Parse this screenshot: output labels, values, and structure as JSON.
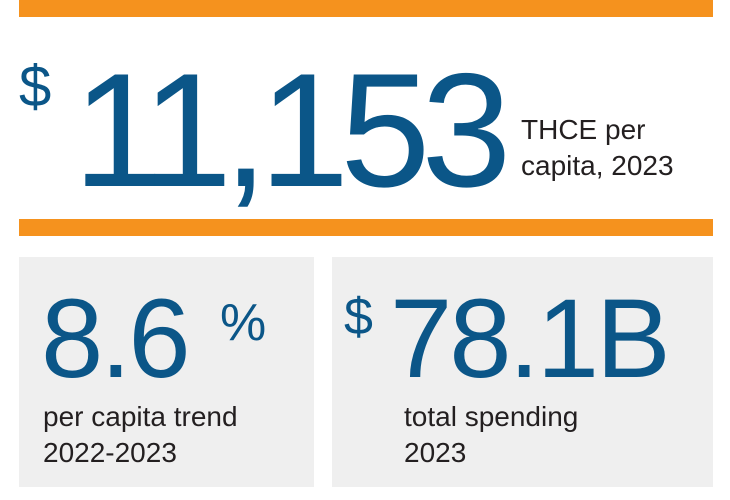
{
  "colors": {
    "accent_bar": "#f5921e",
    "headline_blue": "#0b5688",
    "label_text": "#231f20",
    "card_background": "#efefef"
  },
  "hero": {
    "currency_symbol": "$",
    "value": "11,153",
    "label_line1": "THCE per",
    "label_line2": "capita, 2023"
  },
  "trend": {
    "value": "8.6",
    "suffix": "%",
    "label_line1": "per capita trend",
    "label_line2": "2022-2023"
  },
  "spending": {
    "currency_symbol": "$",
    "value": "78.1B",
    "label_line1": "total spending",
    "label_line2": "2023"
  }
}
